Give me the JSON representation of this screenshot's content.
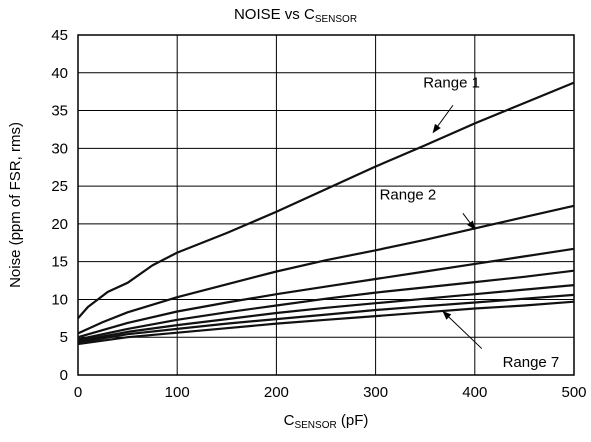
{
  "chart_data": {
    "type": "line",
    "title": {
      "main": "NOISE vs C",
      "sub": "SENSOR"
    },
    "xlabel": {
      "main": "C",
      "sub": "SENSOR",
      "tail": " (pF)"
    },
    "ylabel": "Noise (ppm of FSR, rms)",
    "xlim": [
      0,
      500
    ],
    "ylim": [
      0,
      45
    ],
    "xticks": [
      0,
      100,
      200,
      300,
      400,
      500
    ],
    "yticks": [
      0,
      5,
      10,
      15,
      20,
      25,
      30,
      35,
      40,
      45
    ],
    "grid": true,
    "series": [
      {
        "name": "Range 1",
        "points": [
          [
            0,
            7.5
          ],
          [
            10,
            9.0
          ],
          [
            30,
            11.0
          ],
          [
            50,
            12.2
          ],
          [
            75,
            14.5
          ],
          [
            100,
            16.2
          ],
          [
            150,
            18.8
          ],
          [
            200,
            21.6
          ],
          [
            250,
            24.6
          ],
          [
            300,
            27.6
          ],
          [
            350,
            30.4
          ],
          [
            400,
            33.3
          ],
          [
            450,
            36.0
          ],
          [
            500,
            38.7
          ]
        ]
      },
      {
        "name": "Range 2",
        "points": [
          [
            0,
            5.5
          ],
          [
            25,
            7.0
          ],
          [
            50,
            8.3
          ],
          [
            100,
            10.3
          ],
          [
            150,
            12.0
          ],
          [
            200,
            13.7
          ],
          [
            250,
            15.2
          ],
          [
            300,
            16.5
          ],
          [
            350,
            17.9
          ],
          [
            400,
            19.4
          ],
          [
            450,
            20.9
          ],
          [
            500,
            22.4
          ]
        ]
      },
      {
        "points": [
          [
            0,
            5.0
          ],
          [
            50,
            6.9
          ],
          [
            100,
            8.4
          ],
          [
            150,
            9.6
          ],
          [
            200,
            10.7
          ],
          [
            250,
            11.7
          ],
          [
            300,
            12.7
          ],
          [
            350,
            13.7
          ],
          [
            400,
            14.7
          ],
          [
            450,
            15.7
          ],
          [
            500,
            16.7
          ]
        ]
      },
      {
        "points": [
          [
            0,
            4.7
          ],
          [
            50,
            6.1
          ],
          [
            100,
            7.3
          ],
          [
            150,
            8.3
          ],
          [
            200,
            9.2
          ],
          [
            250,
            10.1
          ],
          [
            300,
            10.9
          ],
          [
            350,
            11.6
          ],
          [
            400,
            12.3
          ],
          [
            450,
            13.0
          ],
          [
            500,
            13.8
          ]
        ]
      },
      {
        "points": [
          [
            0,
            4.5
          ],
          [
            50,
            5.7
          ],
          [
            100,
            6.6
          ],
          [
            150,
            7.4
          ],
          [
            200,
            8.2
          ],
          [
            250,
            8.9
          ],
          [
            300,
            9.5
          ],
          [
            350,
            10.1
          ],
          [
            400,
            10.7
          ],
          [
            450,
            11.3
          ],
          [
            500,
            11.9
          ]
        ]
      },
      {
        "points": [
          [
            0,
            4.3
          ],
          [
            50,
            5.4
          ],
          [
            100,
            6.1
          ],
          [
            150,
            6.8
          ],
          [
            200,
            7.4
          ],
          [
            250,
            8.0
          ],
          [
            300,
            8.6
          ],
          [
            350,
            9.1
          ],
          [
            400,
            9.6
          ],
          [
            450,
            10.1
          ],
          [
            500,
            10.6
          ]
        ]
      },
      {
        "name": "Range 7",
        "points": [
          [
            0,
            4.1
          ],
          [
            50,
            5.0
          ],
          [
            100,
            5.6
          ],
          [
            150,
            6.2
          ],
          [
            200,
            6.8
          ],
          [
            250,
            7.3
          ],
          [
            300,
            7.8
          ],
          [
            350,
            8.3
          ],
          [
            400,
            8.8
          ],
          [
            450,
            9.2
          ],
          [
            500,
            9.7
          ]
        ]
      }
    ],
    "annotations": [
      {
        "text": "Range 1",
        "label_at": [
          348,
          38.7
        ],
        "arrow_from": [
          378,
          35.7
        ],
        "arrow_to": [
          358,
          32.1
        ]
      },
      {
        "text": "Range 2",
        "label_at": [
          304,
          23.9
        ],
        "arrow_from": [
          388,
          21.4
        ],
        "arrow_to": [
          400,
          19.3
        ]
      },
      {
        "text": "Range 7",
        "label_at": [
          428,
          1.7
        ],
        "arrow_from": [
          407,
          3.5
        ],
        "arrow_to": [
          368,
          8.4
        ]
      }
    ]
  }
}
